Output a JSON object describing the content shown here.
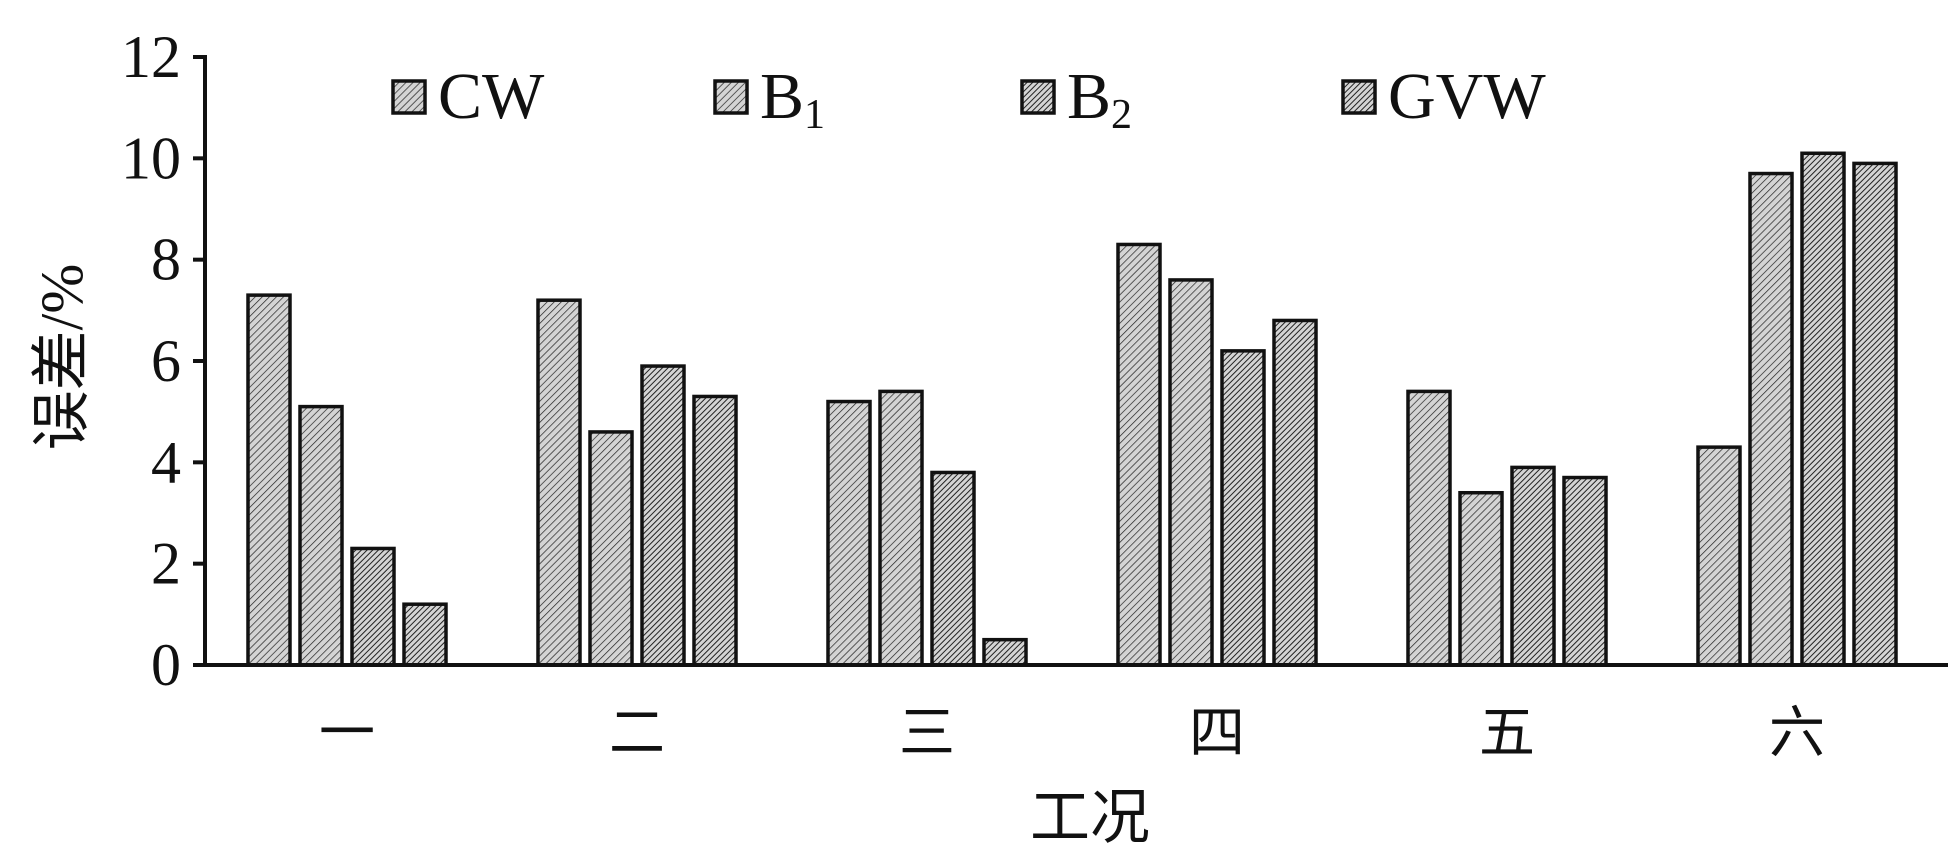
{
  "chart_data": {
    "type": "bar",
    "categories": [
      "一",
      "二",
      "三",
      "四",
      "五",
      "六"
    ],
    "series": [
      {
        "name": "CW",
        "name_main": "CW",
        "name_sub": "",
        "values": [
          7.3,
          7.2,
          5.2,
          8.3,
          5.4,
          4.3
        ]
      },
      {
        "name": "B1",
        "name_main": "B",
        "name_sub": "1",
        "values": [
          5.1,
          4.6,
          5.4,
          7.6,
          3.4,
          9.7
        ]
      },
      {
        "name": "B2",
        "name_main": "B",
        "name_sub": "2",
        "values": [
          2.3,
          5.9,
          3.8,
          6.2,
          3.9,
          10.1
        ]
      },
      {
        "name": "GVW",
        "name_main": "GVW",
        "name_sub": "",
        "values": [
          1.2,
          5.3,
          0.5,
          6.8,
          3.7,
          9.9
        ]
      }
    ],
    "xlabel": "工况",
    "ylabel": "误差/%",
    "ylim": [
      0,
      12
    ],
    "yticks": [
      0,
      2,
      4,
      6,
      8,
      10,
      12
    ],
    "grid": false,
    "legend_position": "top",
    "colors": {
      "axis": "#111111",
      "bar_fill": "#d4d4d4",
      "hatch": "#222222"
    },
    "hatch_density": [
      1,
      1,
      2,
      2
    ]
  }
}
